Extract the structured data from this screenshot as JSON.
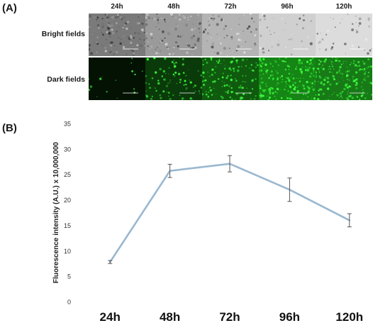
{
  "panel_a": {
    "label": "(A)",
    "timepoints": [
      "24h",
      "48h",
      "72h",
      "96h",
      "120h"
    ],
    "rows": [
      "Bright fields",
      "Dark fields"
    ],
    "colors": {
      "bright": [
        "#7a7a7a",
        "#9a9a9a",
        "#b4b4b4",
        "#d0d0d0",
        "#dcdcdc"
      ],
      "dark": [
        "#041204",
        "#0a3a0a",
        "#0f5a0f",
        "#158515",
        "#177a17"
      ],
      "speckle": "#3cff3c"
    },
    "green_density": [
      0.05,
      0.35,
      0.55,
      0.85,
      0.75
    ]
  },
  "panel_b": {
    "label": "(B)"
  },
  "chart_data": {
    "type": "line",
    "categories": [
      "24h",
      "48h",
      "72h",
      "96h",
      "120h"
    ],
    "values": [
      7.8,
      25.7,
      27.1,
      22.0,
      16.0
    ],
    "error": [
      0.3,
      1.3,
      1.6,
      2.3,
      1.3
    ],
    "title": "",
    "xlabel": "",
    "ylabel": "Fluorescence intensity (A.U.) x 10,000,000",
    "ylim": [
      0,
      35
    ],
    "yticks": [
      0,
      5,
      10,
      15,
      20,
      25,
      30,
      35
    ],
    "grid": false,
    "line_color": "#9ab8d0",
    "errorbar_color": "#555555"
  }
}
